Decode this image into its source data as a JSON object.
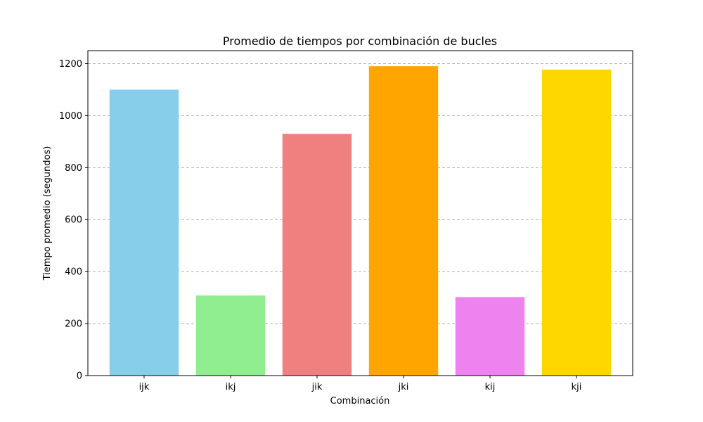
{
  "chart_data": {
    "type": "bar",
    "title": "Promedio de tiempos por combinación de bucles",
    "xlabel": "Combinación",
    "ylabel": "Tiempo promedio (segundos)",
    "categories": [
      "ijk",
      "ikj",
      "jik",
      "jki",
      "kij",
      "kji"
    ],
    "values": [
      1100,
      308,
      930,
      1190,
      302,
      1177
    ],
    "colors": [
      "#87ceeb",
      "#90ee90",
      "#f08080",
      "#ffa500",
      "#ee82ee",
      "#ffd700"
    ],
    "ylim": [
      0,
      1250
    ],
    "yticks": [
      0,
      200,
      400,
      600,
      800,
      1000,
      1200
    ],
    "grid": "y-dashed",
    "legend": "none"
  }
}
